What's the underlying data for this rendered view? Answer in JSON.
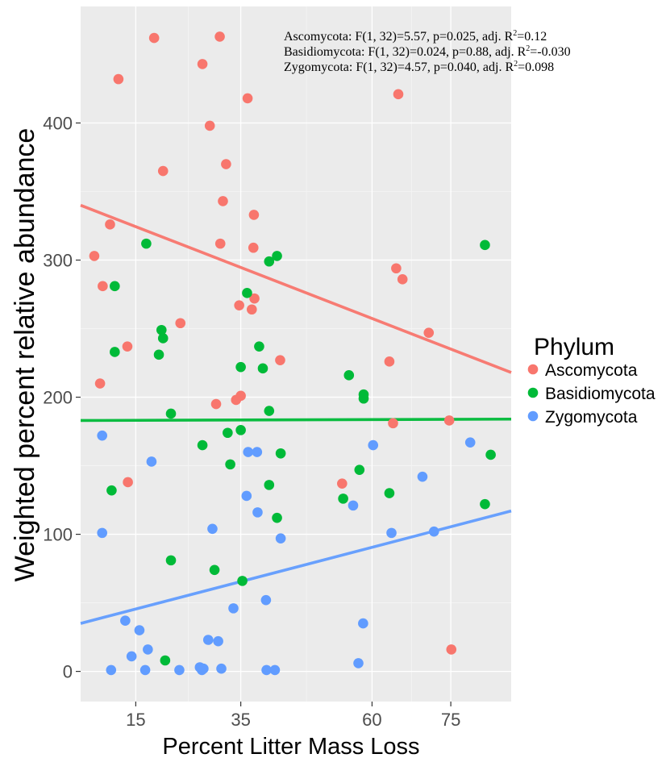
{
  "chart_data": {
    "type": "scatter",
    "xlabel": "Percent Litter Mass Loss",
    "ylabel": "Weighted percent relative abundance",
    "xlim": [
      4.5,
      86.5
    ],
    "ylim": [
      -22,
      485
    ],
    "xticks": [
      15,
      35,
      60,
      75
    ],
    "yticks": [
      0,
      100,
      200,
      300,
      400
    ],
    "grid": true,
    "legend": {
      "title": "Phylum",
      "placement": "right"
    },
    "annotations": [
      {
        "text": "Ascomycota: F(1, 32)=5.57, p=0.025, adj. R",
        "sup": "2",
        "tail": "=0.12"
      },
      {
        "text": "Basidiomycota: F(1, 32)=0.024, p=0.88, adj. R",
        "sup": "2",
        "tail": "=-0.030"
      },
      {
        "text": "Zygomycota: F(1, 32)=4.57, p=0.040, adj. R",
        "sup": "2",
        "tail": "=0.098"
      }
    ],
    "series": [
      {
        "name": "Ascomycota",
        "color": "#F8766D",
        "fit": {
          "x": [
            4.5,
            86.5
          ],
          "y": [
            340,
            218
          ]
        },
        "points": [
          [
            18.5,
            462
          ],
          [
            31,
            463
          ],
          [
            27.7,
            443
          ],
          [
            11.7,
            432
          ],
          [
            65,
            421
          ],
          [
            36.3,
            418
          ],
          [
            29.1,
            398
          ],
          [
            32.2,
            370
          ],
          [
            20.2,
            365
          ],
          [
            31.6,
            343
          ],
          [
            37.5,
            333
          ],
          [
            10.1,
            326
          ],
          [
            31.1,
            312
          ],
          [
            37.4,
            309
          ],
          [
            7.1,
            303
          ],
          [
            64.6,
            294
          ],
          [
            8.7,
            281
          ],
          [
            65.8,
            286
          ],
          [
            37.6,
            272
          ],
          [
            34.7,
            267
          ],
          [
            37.1,
            264
          ],
          [
            23.5,
            254
          ],
          [
            70.8,
            247
          ],
          [
            13.4,
            237
          ],
          [
            42.5,
            227
          ],
          [
            63.3,
            226
          ],
          [
            8.2,
            210
          ],
          [
            35,
            201
          ],
          [
            30.3,
            195
          ],
          [
            34.1,
            198
          ],
          [
            64,
            181
          ],
          [
            74.7,
            183
          ],
          [
            13.5,
            138
          ],
          [
            54.3,
            137
          ],
          [
            75.1,
            16
          ]
        ]
      },
      {
        "name": "Basidiomycota",
        "color": "#00BA38",
        "fit": {
          "x": [
            4.5,
            86.5
          ],
          "y": [
            183,
            184
          ]
        },
        "points": [
          [
            17,
            312
          ],
          [
            81.5,
            311
          ],
          [
            40.4,
            299
          ],
          [
            41.9,
            303
          ],
          [
            11,
            281
          ],
          [
            36.2,
            276
          ],
          [
            19.9,
            249
          ],
          [
            11,
            233
          ],
          [
            38.5,
            237
          ],
          [
            20.2,
            243
          ],
          [
            19.4,
            231
          ],
          [
            39.2,
            221
          ],
          [
            35,
            222
          ],
          [
            55.6,
            216
          ],
          [
            58.4,
            202
          ],
          [
            58.4,
            199
          ],
          [
            21.7,
            188
          ],
          [
            40.4,
            190
          ],
          [
            35,
            176
          ],
          [
            32.5,
            174
          ],
          [
            27.7,
            165
          ],
          [
            42.6,
            159
          ],
          [
            33,
            151
          ],
          [
            82.6,
            158
          ],
          [
            57.6,
            147
          ],
          [
            10.4,
            132
          ],
          [
            63.3,
            130
          ],
          [
            40.4,
            136
          ],
          [
            54.5,
            126
          ],
          [
            41.9,
            112
          ],
          [
            81.5,
            122
          ],
          [
            21.7,
            81
          ],
          [
            30,
            74
          ],
          [
            35.3,
            66
          ],
          [
            20.6,
            8
          ]
        ]
      },
      {
        "name": "Zygomycota",
        "color": "#619CFF",
        "fit": {
          "x": [
            4.5,
            86.5
          ],
          "y": [
            35,
            117
          ]
        },
        "points": [
          [
            8.6,
            172
          ],
          [
            78.7,
            167
          ],
          [
            60.2,
            165
          ],
          [
            36.4,
            160
          ],
          [
            38.1,
            160
          ],
          [
            18,
            153
          ],
          [
            69.6,
            142
          ],
          [
            36.1,
            128
          ],
          [
            56.4,
            121
          ],
          [
            38.2,
            116
          ],
          [
            8.6,
            101
          ],
          [
            29.6,
            104
          ],
          [
            63.7,
            101
          ],
          [
            71.8,
            102
          ],
          [
            42.6,
            97
          ],
          [
            33.6,
            46
          ],
          [
            39.8,
            52
          ],
          [
            13,
            37
          ],
          [
            15.7,
            30
          ],
          [
            58.3,
            35
          ],
          [
            28.8,
            23
          ],
          [
            30.7,
            22
          ],
          [
            17.3,
            16
          ],
          [
            14.2,
            11
          ],
          [
            10.3,
            1
          ],
          [
            16.8,
            1
          ],
          [
            23.3,
            1
          ],
          [
            27.2,
            3
          ],
          [
            27.6,
            1
          ],
          [
            31.3,
            2
          ],
          [
            27.9,
            2
          ],
          [
            39.9,
            1
          ],
          [
            41.5,
            1
          ],
          [
            57.4,
            6
          ]
        ]
      }
    ]
  }
}
